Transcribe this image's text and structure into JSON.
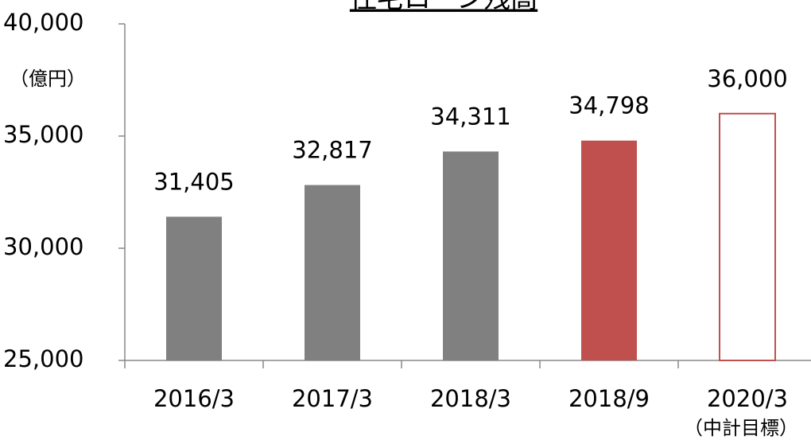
{
  "chart_data": {
    "type": "bar",
    "title": "住宅ローン残高",
    "unit_label": "（億円）",
    "categories": [
      "2016/3",
      "2017/3",
      "2018/3",
      "2018/9",
      "2020/3"
    ],
    "category_notes": [
      null,
      null,
      null,
      null,
      "（中計目標）"
    ],
    "values": [
      31405,
      32817,
      34311,
      34798,
      36000
    ],
    "value_labels": [
      "31,405",
      "32,817",
      "34,311",
      "34,798",
      "36,000"
    ],
    "colors": [
      "#808080",
      "#808080",
      "#808080",
      "#c0504d",
      "#ffffff"
    ],
    "outline_colors": [
      null,
      null,
      null,
      null,
      "#c0504d"
    ],
    "ylim": [
      25000,
      40000
    ],
    "yticks": [
      {
        "value": 25000,
        "label": "25,000"
      },
      {
        "value": 30000,
        "label": "30,000"
      },
      {
        "value": 35000,
        "label": "35,000"
      },
      {
        "value": 40000,
        "label": "40,000"
      }
    ],
    "grid": false
  }
}
